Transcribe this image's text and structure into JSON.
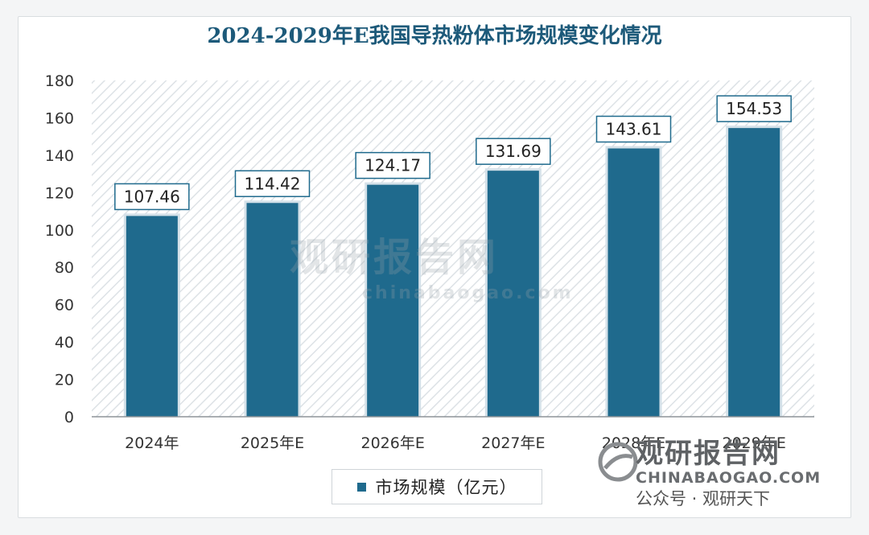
{
  "chart_data": {
    "type": "bar",
    "title": "2024-2029年E我国导热粉体市场规模变化情况",
    "categories": [
      "2024年",
      "2025年E",
      "2026年E",
      "2027年E",
      "2028年E",
      "2029年E"
    ],
    "series": [
      {
        "name": "市场规模（亿元）",
        "values": [
          107.46,
          114.42,
          124.17,
          131.69,
          143.61,
          154.53
        ]
      }
    ],
    "data_labels": [
      "107.46",
      "114.42",
      "124.17",
      "131.69",
      "143.61",
      "154.53"
    ],
    "y_ticks": [
      "0",
      "20",
      "40",
      "60",
      "80",
      "100",
      "120",
      "140",
      "160",
      "180"
    ],
    "ylim": [
      0,
      180
    ],
    "xlabel": "",
    "ylabel": "",
    "grid": false,
    "legend_position": "bottom",
    "colors": {
      "bar": "#1f6a8d",
      "title": "#1d5a7a",
      "label_border": "#1f6a8d"
    }
  },
  "watermark": {
    "center_cn": "观研报告网",
    "center_en": "chinabaogao.com",
    "logo_cn": "观研报告网",
    "logo_en": "CHINABAOGAO.COM",
    "account": "公众号 · 观研天下"
  }
}
